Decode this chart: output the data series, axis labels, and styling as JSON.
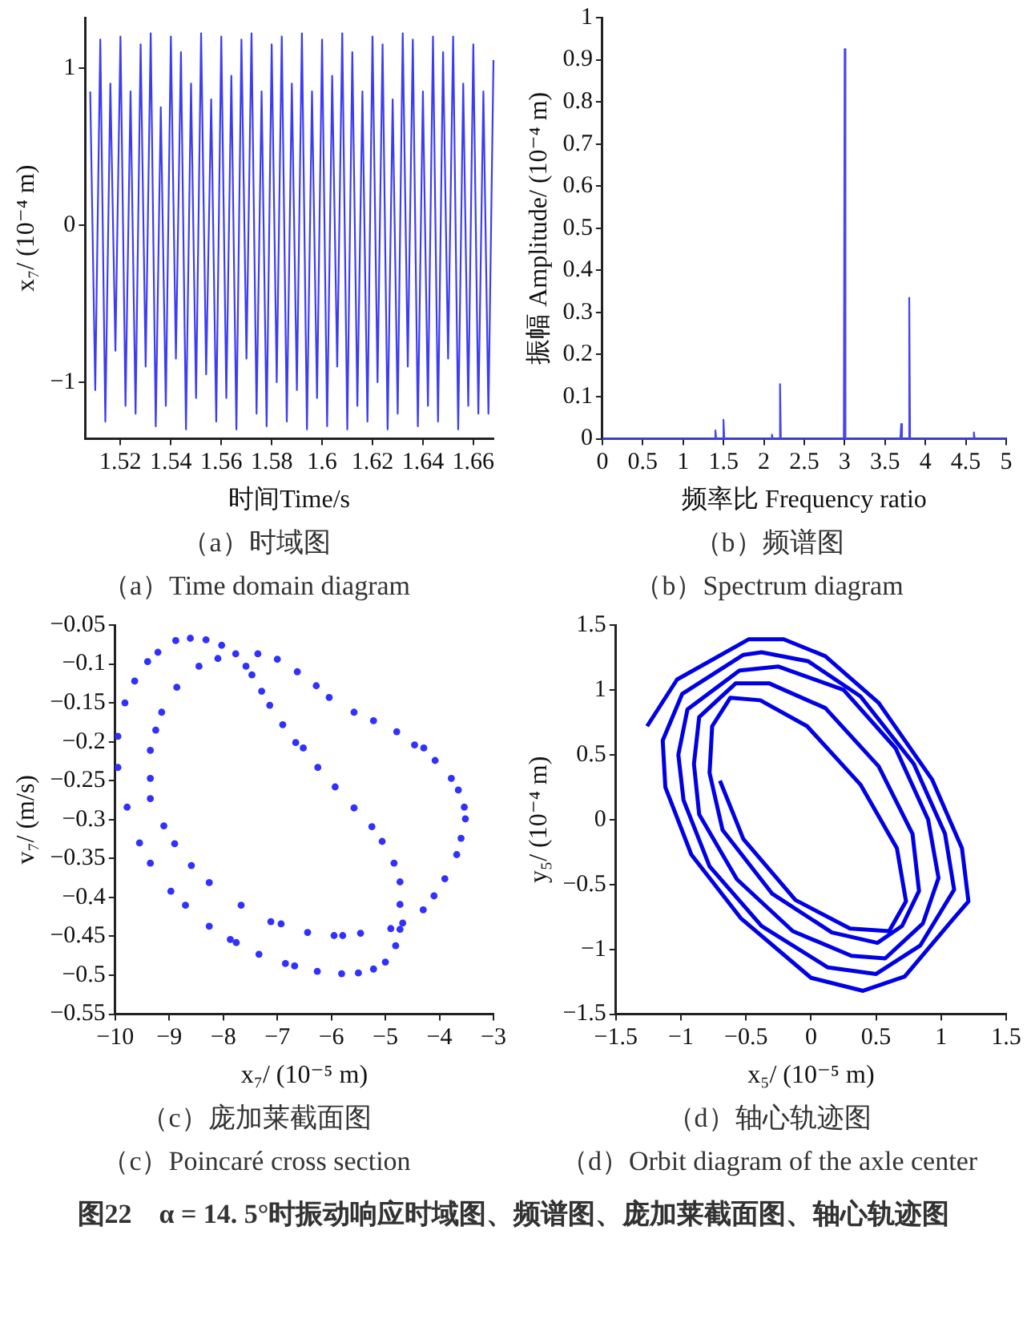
{
  "chart_data": [
    {
      "type": "line",
      "xlabel": "时间Time/s",
      "ylabel": "x₇/ (10⁻⁴ m)",
      "xlim": [
        1.506,
        1.668
      ],
      "xticks": [
        1.52,
        1.54,
        1.56,
        1.58,
        1.6,
        1.62,
        1.64,
        1.66
      ],
      "ylim": [
        -1.36,
        1.32
      ],
      "yticks": [
        -1,
        0,
        1
      ],
      "grid": false,
      "legend": false,
      "x": [
        1.508,
        1.51,
        1.512,
        1.514,
        1.516,
        1.518,
        1.52,
        1.522,
        1.524,
        1.526,
        1.528,
        1.53,
        1.532,
        1.534,
        1.536,
        1.538,
        1.54,
        1.542,
        1.544,
        1.546,
        1.548,
        1.55,
        1.552,
        1.554,
        1.556,
        1.558,
        1.56,
        1.562,
        1.564,
        1.566,
        1.568,
        1.57,
        1.572,
        1.574,
        1.576,
        1.578,
        1.58,
        1.582,
        1.584,
        1.586,
        1.588,
        1.59,
        1.592,
        1.594,
        1.596,
        1.598,
        1.6,
        1.602,
        1.604,
        1.606,
        1.608,
        1.61,
        1.612,
        1.614,
        1.616,
        1.618,
        1.62,
        1.622,
        1.624,
        1.626,
        1.628,
        1.63,
        1.632,
        1.634,
        1.636,
        1.638,
        1.64,
        1.642,
        1.644,
        1.646,
        1.648,
        1.65,
        1.652,
        1.654,
        1.656,
        1.658,
        1.66,
        1.662,
        1.664,
        1.666,
        1.668
      ],
      "series": [
        {
          "color": "#3c3cf5",
          "values": [
            0.85,
            -1.05,
            1.18,
            -1.25,
            0.9,
            -0.8,
            1.2,
            -1.15,
            0.85,
            -1.2,
            1.15,
            -0.9,
            1.22,
            -1.28,
            0.75,
            -1.15,
            1.2,
            -0.85,
            1.1,
            -1.3,
            0.9,
            -1.1,
            1.22,
            -0.95,
            0.8,
            -1.25,
            1.2,
            -1.1,
            0.95,
            -1.3,
            1.18,
            -0.85,
            1.22,
            -1.2,
            0.85,
            -1.28,
            1.15,
            -1.0,
            1.2,
            -1.25,
            0.9,
            -1.05,
            1.22,
            -1.3,
            0.85,
            -1.1,
            1.18,
            -1.28,
            0.95,
            -0.9,
            1.22,
            -1.3,
            1.1,
            -1.15,
            0.85,
            -1.25,
            1.2,
            -1.0,
            1.15,
            -1.3,
            0.8,
            -1.2,
            1.22,
            -0.9,
            1.18,
            -1.28,
            0.85,
            -1.15,
            1.2,
            -1.25,
            1.1,
            -0.85,
            1.2,
            -1.3,
            0.9,
            -1.15,
            1.15,
            -1.2,
            0.85,
            -1.2,
            1.05
          ]
        }
      ],
      "annotations": [
        "（a）时域图",
        "（a）Time domain diagram"
      ]
    },
    {
      "type": "line",
      "xlabel": "频率比 Frequency ratio",
      "ylabel": "振幅 Amplitude/ (10⁻⁴ m)",
      "xlim": [
        0,
        5
      ],
      "xticks": [
        0,
        0.5,
        1,
        1.5,
        2,
        2.5,
        3,
        3.5,
        4,
        4.5,
        5
      ],
      "ylim": [
        0,
        1
      ],
      "yticks": [
        0,
        0.1,
        0.2,
        0.3,
        0.4,
        0.5,
        0.6,
        0.7,
        0.8,
        0.9,
        1
      ],
      "grid": false,
      "legend": false,
      "x": [
        0,
        1.39,
        1.4,
        1.41,
        1.49,
        1.5,
        1.51,
        2.09,
        2.1,
        2.11,
        2.19,
        2.2,
        2.21,
        2.99,
        3.0,
        3.01,
        3.69,
        3.7,
        3.71,
        3.79,
        3.8,
        3.81,
        4.59,
        4.6,
        4.61,
        5
      ],
      "series": [
        {
          "color": "#4646f0",
          "values": [
            0,
            0,
            0.02,
            0,
            0,
            0.045,
            0,
            0,
            0.01,
            0,
            0,
            0.13,
            0,
            0,
            0.925,
            0,
            0,
            0.035,
            0,
            0,
            0.335,
            0,
            0,
            0.015,
            0,
            0
          ]
        }
      ],
      "annotations": [
        "（b）频谱图",
        "（b）Spectrum diagram"
      ]
    },
    {
      "type": "scatter",
      "xlabel": "x₇/ (10⁻⁵ m)",
      "ylabel": "v₇/ (m/s)",
      "xlim": [
        -10,
        -3
      ],
      "xticks": [
        -10,
        -9,
        -8,
        -7,
        -6,
        -5,
        -4,
        -3
      ],
      "ylim": [
        -0.55,
        -0.05
      ],
      "yticks": [
        -0.55,
        -0.5,
        -0.45,
        -0.4,
        -0.35,
        -0.3,
        -0.25,
        -0.2,
        -0.15,
        -0.1,
        -0.05
      ],
      "grid": false,
      "legend": false,
      "marker": "circle",
      "x": [
        -8.61,
        -8.32,
        -8.88,
        -8.03,
        -9.21,
        -7.77,
        -7.36,
        -9.4,
        -8.1,
        -7.0,
        -7.58,
        -8.45,
        -7.47,
        -6.63,
        -9.64,
        -8.86,
        -7.29,
        -6.28,
        -7.14,
        -9.82,
        -9.14,
        -6.04,
        -5.58,
        -5.22,
        -6.9,
        -9.25,
        -9.95,
        -4.79,
        -6.66,
        -6.52,
        -9.35,
        -4.46,
        -4.29,
        -4.08,
        -9.95,
        -6.25,
        -9.35,
        -5.93,
        -3.78,
        -9.35,
        -3.65,
        -9.78,
        -3.54,
        -5.58,
        -3.52,
        -9.1,
        -5.25,
        -3.6,
        -9.55,
        -5.06,
        -8.9,
        -3.68,
        -9.35,
        -8.59,
        -4.84,
        -3.9,
        -4.73,
        -8.26,
        -4.1,
        -8.97,
        -4.73,
        -4.3,
        -8.7,
        -7.67,
        -7.12,
        -6.93,
        -4.68,
        -4.9,
        -8.26,
        -6.44,
        -5.95,
        -5.79,
        -5.46,
        -4.73,
        -7.87,
        -7.76,
        -4.81,
        -7.34,
        -6.85,
        -6.68,
        -5.0,
        -5.22,
        -6.26,
        -5.81,
        -5.5
      ],
      "series": [
        {
          "color": "#3030ff",
          "values": [
            -0.067,
            -0.069,
            -0.07,
            -0.076,
            -0.085,
            -0.087,
            -0.087,
            -0.097,
            -0.093,
            -0.094,
            -0.103,
            -0.103,
            -0.114,
            -0.11,
            -0.122,
            -0.13,
            -0.135,
            -0.128,
            -0.153,
            -0.15,
            -0.162,
            -0.143,
            -0.162,
            -0.173,
            -0.178,
            -0.185,
            -0.193,
            -0.187,
            -0.201,
            -0.208,
            -0.211,
            -0.204,
            -0.208,
            -0.224,
            -0.233,
            -0.233,
            -0.247,
            -0.258,
            -0.247,
            -0.273,
            -0.262,
            -0.284,
            -0.284,
            -0.285,
            -0.299,
            -0.308,
            -0.309,
            -0.324,
            -0.33,
            -0.328,
            -0.331,
            -0.345,
            -0.356,
            -0.359,
            -0.356,
            -0.376,
            -0.38,
            -0.381,
            -0.398,
            -0.392,
            -0.409,
            -0.416,
            -0.41,
            -0.41,
            -0.431,
            -0.434,
            -0.433,
            -0.44,
            -0.437,
            -0.445,
            -0.449,
            -0.449,
            -0.446,
            -0.441,
            -0.454,
            -0.458,
            -0.462,
            -0.473,
            -0.485,
            -0.488,
            -0.483,
            -0.492,
            -0.495,
            -0.498,
            -0.497
          ]
        }
      ],
      "annotations": [
        "（c）庞加莱截面图",
        "（c）Poincaré cross section"
      ]
    },
    {
      "type": "line",
      "xlabel": "x₅/ (10⁻⁵ m)",
      "ylabel": "y₅/ (10⁻⁴ m)",
      "xlim": [
        -1.5,
        1.5
      ],
      "xticks": [
        -1.5,
        -1,
        -0.5,
        0,
        0.5,
        1,
        1.5
      ],
      "ylim": [
        -1.5,
        1.5
      ],
      "yticks": [
        -1.5,
        -1,
        -0.5,
        0,
        0.5,
        1,
        1.5
      ],
      "grid": false,
      "legend": false,
      "series": [
        {
          "color": "#0000e6",
          "x": [
            -1.26,
            -1.03,
            -0.48,
            -0.21,
            0.11,
            0.52,
            0.93,
            1.16,
            1.21,
            1.09,
            0.72,
            0.4,
            0.0,
            -0.54,
            -0.92,
            -1.12,
            -1.14,
            -0.99,
            -0.52,
            -0.38,
            -0.02,
            0.38,
            0.79,
            1.03,
            1.1,
            0.84,
            0.5,
            0.13,
            -0.38,
            -0.78,
            -0.98,
            -1.02,
            -0.95,
            -0.55,
            -0.25,
            0.25,
            0.65,
            0.9,
            0.98,
            0.86,
            0.57,
            0.31,
            -0.14,
            -0.57,
            -0.86,
            -0.9,
            -0.86,
            -0.58,
            -0.32,
            0.11,
            0.52,
            0.78,
            0.83,
            0.7,
            0.51,
            0.16,
            -0.3,
            -0.68,
            -0.78,
            -0.76,
            -0.62,
            -0.39,
            -0.03,
            0.38,
            0.66,
            0.73,
            0.6,
            0.3,
            -0.12,
            -0.52,
            -0.7
          ],
          "values": [
            0.72,
            1.08,
            1.39,
            1.39,
            1.26,
            0.9,
            0.31,
            -0.22,
            -0.63,
            -0.77,
            -1.21,
            -1.32,
            -1.22,
            -0.76,
            -0.27,
            0.25,
            0.61,
            0.97,
            1.27,
            1.29,
            1.22,
            0.95,
            0.43,
            -0.11,
            -0.54,
            -0.97,
            -1.19,
            -1.14,
            -0.82,
            -0.36,
            0.15,
            0.5,
            0.85,
            1.15,
            1.18,
            1.0,
            0.55,
            0,
            -0.45,
            -0.8,
            -1.07,
            -1.05,
            -0.86,
            -0.46,
            0.04,
            0.43,
            0.79,
            1.05,
            1.05,
            0.86,
            0.41,
            -0.11,
            -0.55,
            -0.82,
            -0.95,
            -0.87,
            -0.57,
            -0.08,
            0.36,
            0.72,
            0.94,
            0.92,
            0.72,
            0.27,
            -0.22,
            -0.63,
            -0.86,
            -0.84,
            -0.62,
            -0.15,
            0.3
          ]
        }
      ],
      "annotations": [
        "（d）轴心轨迹图",
        "（d）Orbit diagram of the axle center",
        "图22　α = 14. 5°时振动响应时域图、频谱图、庞加莱截面图、轴心轨迹图"
      ]
    }
  ]
}
